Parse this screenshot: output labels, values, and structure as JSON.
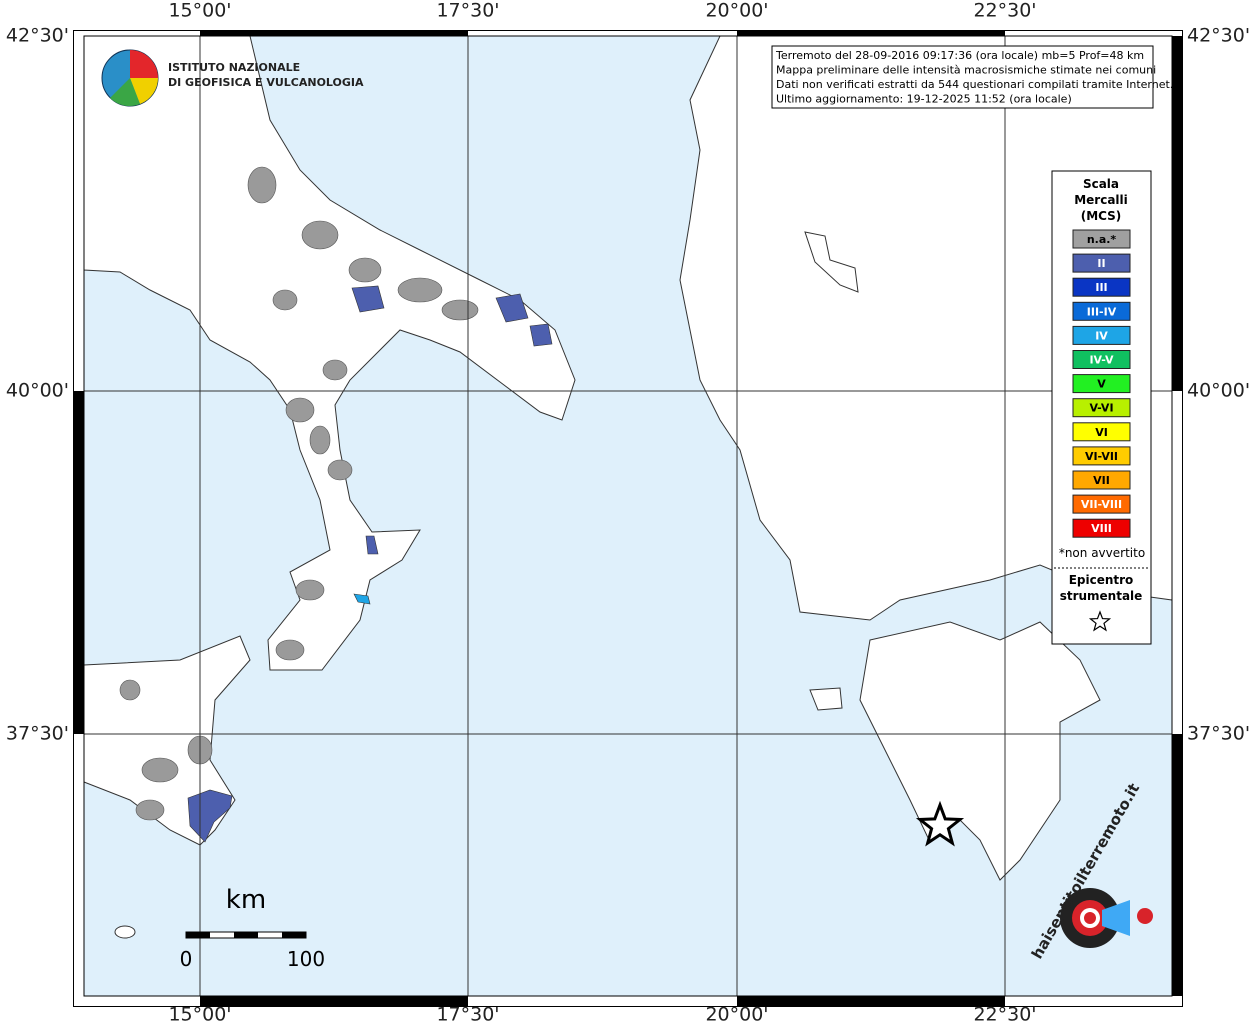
{
  "map": {
    "x_labels": [
      "15°00'",
      "17°30'",
      "20°00'",
      "22°30'"
    ],
    "y_labels": [
      "42°30'",
      "40°00'",
      "37°30'"
    ]
  },
  "logo": {
    "line1": "ISTITUTO NAZIONALE",
    "line2": "DI GEOFISICA E VULCANOLOGIA"
  },
  "info": [
    "Terremoto del 28-09-2016 09:17:36 (ora locale) mb=5 Prof=48 km",
    "Mappa preliminare delle intensità macrosismiche stimate nei comuni",
    "Dati non verificati estratti da 544 questionari compilati tramite Internet.",
    "Ultimo aggiornamento: 19-12-2025 11:52 (ora locale)"
  ],
  "legend": {
    "title": [
      "Scala",
      "Mercalli",
      "(MCS)"
    ],
    "items": [
      {
        "label": "n.a.*",
        "color": "#a0a0a0"
      },
      {
        "label": "II",
        "color": "#4d5fae"
      },
      {
        "label": "III",
        "color": "#0a35c4"
      },
      {
        "label": "III-IV",
        "color": "#0a6ad8"
      },
      {
        "label": "IV",
        "color": "#1ea5e6"
      },
      {
        "label": "IV-V",
        "color": "#10c060"
      },
      {
        "label": "V",
        "color": "#22f022"
      },
      {
        "label": "V-VI",
        "color": "#b8f000"
      },
      {
        "label": "VI",
        "color": "#ffff00"
      },
      {
        "label": "VI-VII",
        "color": "#ffcc00"
      },
      {
        "label": "VII",
        "color": "#ffa800"
      },
      {
        "label": "VII-VIII",
        "color": "#ff6a00"
      },
      {
        "label": "VIII",
        "color": "#ee0000"
      }
    ],
    "note": "*non avvertito",
    "epicenter": [
      "Epicentro",
      "strumentale"
    ]
  },
  "scale": {
    "unit": "km",
    "start": "0",
    "end": "100"
  },
  "watermark": "haisentitoilterremoto.it"
}
